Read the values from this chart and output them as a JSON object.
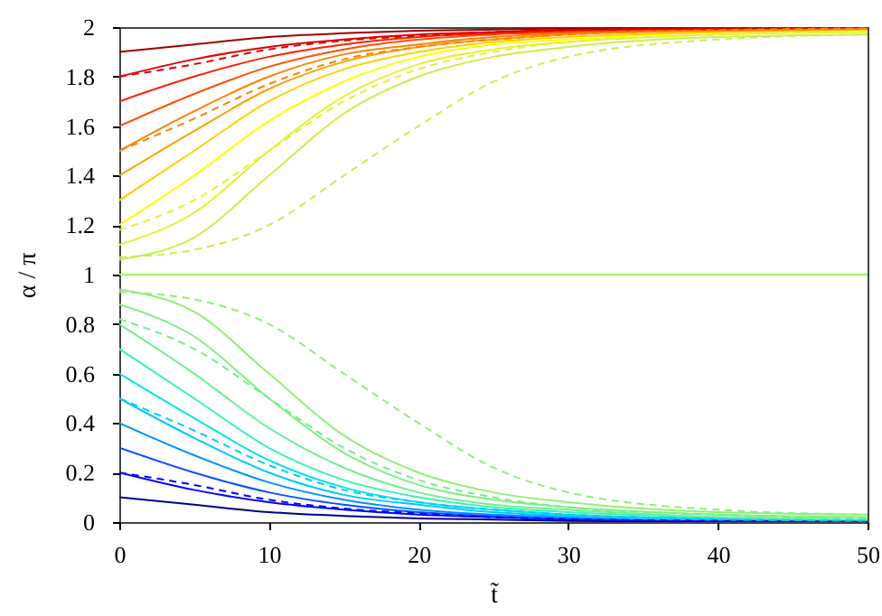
{
  "chart_data": {
    "type": "line",
    "xlabel": "t̃",
    "ylabel": "α / π",
    "xlim": [
      0,
      50
    ],
    "ylim": [
      0,
      2
    ],
    "xticks": [
      0,
      10,
      20,
      30,
      40,
      50
    ],
    "yticks": [
      0,
      0.2,
      0.4,
      0.6,
      0.8,
      1,
      1.2,
      1.4,
      1.6,
      1.8,
      2
    ],
    "grid": false,
    "line_style": "solid",
    "x": [
      0,
      5,
      10,
      15,
      20,
      25,
      30,
      40,
      50
    ],
    "series": [
      {
        "color": "#00008b",
        "values": [
          0.1,
          0.07,
          0.04,
          0.025,
          0.015,
          0.01,
          0.005,
          0,
          0
        ]
      },
      {
        "color": "#0000ff",
        "values": [
          0.2,
          0.13,
          0.08,
          0.05,
          0.03,
          0.02,
          0.01,
          0.005,
          0
        ]
      },
      {
        "color": "#0050ff",
        "values": [
          0.3,
          0.2,
          0.12,
          0.07,
          0.04,
          0.025,
          0.015,
          0.01,
          0.005
        ]
      },
      {
        "color": "#0090ff",
        "values": [
          0.4,
          0.27,
          0.16,
          0.09,
          0.05,
          0.03,
          0.02,
          0.01,
          0.005
        ]
      },
      {
        "color": "#00c8ff",
        "values": [
          0.5,
          0.34,
          0.2,
          0.11,
          0.07,
          0.04,
          0.025,
          0.01,
          0.01
        ]
      },
      {
        "color": "#00e5e5",
        "values": [
          0.6,
          0.42,
          0.25,
          0.14,
          0.08,
          0.05,
          0.03,
          0.015,
          0.01
        ]
      },
      {
        "color": "#40f0b0",
        "values": [
          0.7,
          0.5,
          0.3,
          0.17,
          0.1,
          0.06,
          0.04,
          0.02,
          0.01
        ]
      },
      {
        "color": "#70f090",
        "values": [
          0.8,
          0.6,
          0.38,
          0.22,
          0.12,
          0.07,
          0.05,
          0.02,
          0.01
        ]
      },
      {
        "color": "#80f080",
        "values": [
          0.88,
          0.75,
          0.5,
          0.28,
          0.15,
          0.09,
          0.06,
          0.03,
          0.02
        ]
      },
      {
        "color": "#90f078",
        "values": [
          0.94,
          0.85,
          0.6,
          0.35,
          0.2,
          0.12,
          0.08,
          0.04,
          0.03
        ]
      },
      {
        "color": "#0000ff",
        "line_style": "dashed",
        "values": [
          0.2,
          0.15,
          0.09,
          0.055,
          0.035,
          0.02,
          0.012,
          0.005,
          0
        ]
      },
      {
        "color": "#00c8ff",
        "line_style": "dashed",
        "values": [
          0.5,
          0.37,
          0.23,
          0.13,
          0.08,
          0.05,
          0.03,
          0.012,
          0.005
        ]
      },
      {
        "color": "#70f090",
        "line_style": "dashed",
        "values": [
          0.82,
          0.7,
          0.5,
          0.3,
          0.17,
          0.1,
          0.06,
          0.03,
          0.015
        ]
      },
      {
        "color": "#90f078",
        "line_style": "dashed",
        "values": [
          0.93,
          0.9,
          0.8,
          0.6,
          0.4,
          0.22,
          0.12,
          0.05,
          0.03
        ]
      },
      {
        "color": "#a0f070",
        "values": [
          1,
          1,
          1,
          1,
          1,
          1,
          1,
          1,
          1
        ]
      },
      {
        "color": "#c8f050",
        "values": [
          1.06,
          1.15,
          1.4,
          1.65,
          1.8,
          1.88,
          1.92,
          1.96,
          1.97
        ]
      },
      {
        "color": "#e8f030",
        "values": [
          1.12,
          1.25,
          1.5,
          1.72,
          1.85,
          1.91,
          1.94,
          1.97,
          1.98
        ]
      },
      {
        "color": "#ffff00",
        "values": [
          1.2,
          1.4,
          1.62,
          1.78,
          1.88,
          1.93,
          1.95,
          1.98,
          1.99
        ]
      },
      {
        "color": "#ffd000",
        "values": [
          1.3,
          1.5,
          1.7,
          1.83,
          1.9,
          1.94,
          1.96,
          1.98,
          1.99
        ]
      },
      {
        "color": "#ffa000",
        "values": [
          1.4,
          1.58,
          1.75,
          1.86,
          1.92,
          1.95,
          1.97,
          1.985,
          1.99
        ]
      },
      {
        "color": "#ff8000",
        "values": [
          1.5,
          1.66,
          1.8,
          1.89,
          1.93,
          1.96,
          1.975,
          1.99,
          1.995
        ]
      },
      {
        "color": "#ff5000",
        "values": [
          1.6,
          1.73,
          1.84,
          1.91,
          1.95,
          1.97,
          1.98,
          1.99,
          2
        ]
      },
      {
        "color": "#ff2000",
        "values": [
          1.7,
          1.8,
          1.88,
          1.93,
          1.96,
          1.975,
          1.985,
          1.995,
          2
        ]
      },
      {
        "color": "#e00000",
        "values": [
          1.8,
          1.87,
          1.92,
          1.95,
          1.97,
          1.98,
          1.99,
          1.995,
          2
        ]
      },
      {
        "color": "#a00000",
        "values": [
          1.9,
          1.93,
          1.96,
          1.975,
          1.985,
          1.99,
          1.995,
          2,
          2
        ]
      },
      {
        "color": "#e00000",
        "line_style": "dashed",
        "values": [
          1.8,
          1.85,
          1.91,
          1.945,
          1.965,
          1.98,
          1.988,
          1.995,
          2
        ]
      },
      {
        "color": "#ff8000",
        "line_style": "dashed",
        "values": [
          1.5,
          1.63,
          1.77,
          1.87,
          1.92,
          1.95,
          1.97,
          1.988,
          1.995
        ]
      },
      {
        "color": "#e8f030",
        "line_style": "dashed",
        "values": [
          1.18,
          1.3,
          1.5,
          1.7,
          1.83,
          1.9,
          1.94,
          1.97,
          1.985
        ]
      },
      {
        "color": "#c8f050",
        "line_style": "dashed",
        "values": [
          1.07,
          1.1,
          1.2,
          1.4,
          1.6,
          1.78,
          1.88,
          1.95,
          1.97
        ]
      }
    ]
  }
}
